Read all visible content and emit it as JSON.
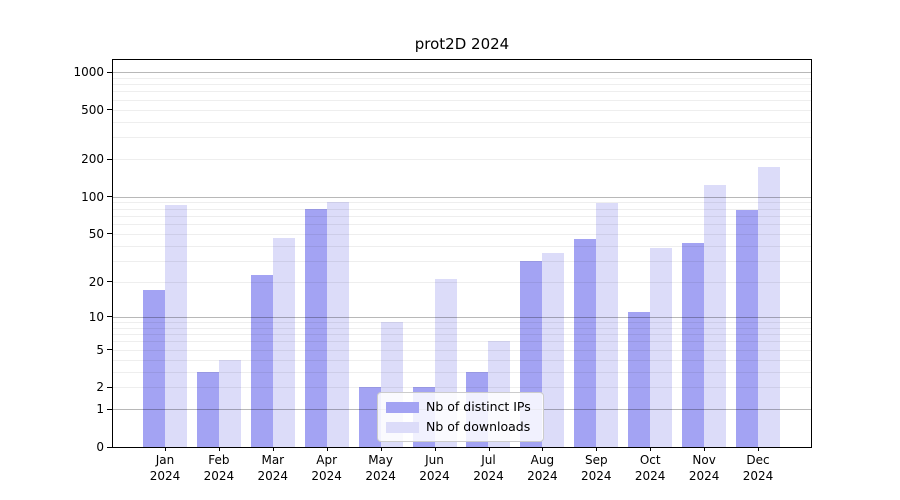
{
  "title": "prot2D 2024",
  "chart_data": {
    "type": "bar",
    "title": "prot2D 2024",
    "categories": [
      "Jan",
      "Feb",
      "Mar",
      "Apr",
      "May",
      "Jun",
      "Jul",
      "Aug",
      "Sep",
      "Oct",
      "Nov",
      "Dec"
    ],
    "year_label": "2024",
    "series": [
      {
        "name": "Nb of distinct IPs",
        "color": "#a3a3f3",
        "values": [
          17,
          3,
          23,
          80,
          2,
          2,
          3,
          30,
          45,
          11,
          42,
          78
        ]
      },
      {
        "name": "Nb of downloads",
        "color": "#dcdcf9",
        "values": [
          85,
          4,
          46,
          91,
          9,
          21,
          6,
          35,
          88,
          38,
          125,
          172
        ]
      }
    ],
    "y_ticks": [
      0,
      1,
      2,
      5,
      10,
      20,
      50,
      100,
      200,
      500,
      1000
    ],
    "y_scale": "log10(1+v)",
    "ylim": [
      0,
      1250
    ],
    "grid": "horizontal major+minor, drawn over bars",
    "legend_position": "inside bottom-center",
    "axis_color": "#000000",
    "major_grid_color": "#b9b9b9",
    "minor_grid_color": "#ededed"
  }
}
